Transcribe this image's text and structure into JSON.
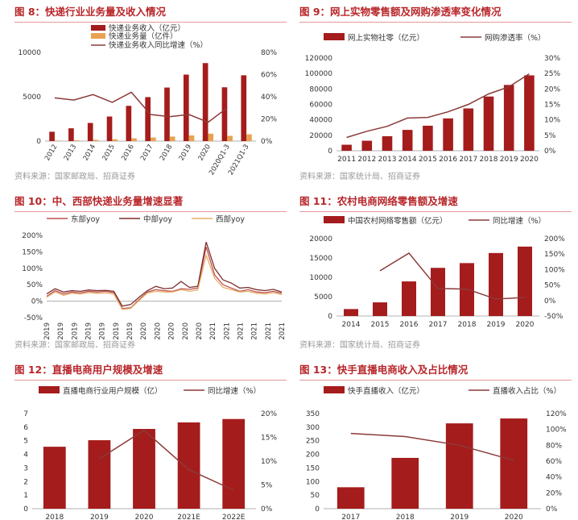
{
  "colors": {
    "bar": "#a51c1c",
    "line": "#8c3a3a",
    "orange": "#e8a251",
    "east": "#c0504d",
    "central": "#7b2f2f",
    "west": "#e6b06a"
  },
  "chart_data": [
    {
      "id": "c8",
      "type": "bar",
      "title": "图 8：快递行业业务量及收入情况",
      "source": "资料来源：国家邮政局、招商证券",
      "categories": [
        "2012",
        "2013",
        "2014",
        "2015",
        "2016",
        "2017",
        "2018",
        "2019",
        "2020",
        "2020Q1-3",
        "2021Q1-3"
      ],
      "series": [
        {
          "name": "快递业务收入（亿元）",
          "type": "bar",
          "axis": "left",
          "values": [
            1055,
            1442,
            2045,
            2770,
            3974,
            4957,
            6038,
            7498,
            8795,
            6067,
            7418
          ]
        },
        {
          "name": "快递业务量（亿件）",
          "type": "bar",
          "axis": "left",
          "values": [
            57,
            92,
            140,
            207,
            313,
            401,
            507,
            635,
            833,
            595,
            770
          ]
        },
        {
          "name": "快递业务收入同比增速（%）",
          "type": "line",
          "axis": "right",
          "values": [
            39,
            37,
            42,
            35,
            44,
            24,
            22,
            24,
            17,
            30,
            null
          ]
        }
      ],
      "yleft": [
        0,
        10000
      ],
      "yleft_ticks": [
        "0",
        "5000",
        "10000"
      ],
      "yright": [
        0,
        80
      ],
      "yright_ticks": [
        "0%",
        "20%",
        "40%",
        "60%",
        "80%"
      ],
      "legend": "top"
    },
    {
      "id": "c9",
      "type": "bar",
      "title": "图 9：网上实物零售额及网购渗透率变化情况",
      "source": "资料来源：国家统计局、招商证券",
      "categories": [
        "2011",
        "2012",
        "2013",
        "2014",
        "2015",
        "2016",
        "2017",
        "2018",
        "2019",
        "2020"
      ],
      "series": [
        {
          "name": "网上实物社零（亿元）",
          "type": "bar",
          "axis": "left",
          "values": [
            7800,
            13000,
            18800,
            27000,
            32400,
            41900,
            54800,
            70200,
            85200,
            97600
          ]
        },
        {
          "name": "网购渗透率（%）",
          "type": "line",
          "axis": "right",
          "values": [
            4.3,
            6.3,
            7.9,
            10.6,
            10.8,
            12.6,
            15.0,
            18.4,
            20.7,
            24.9
          ]
        }
      ],
      "yleft": [
        0,
        120000
      ],
      "yleft_ticks": [
        "0",
        "20000",
        "40000",
        "60000",
        "80000",
        "100000",
        "120000"
      ],
      "yright": [
        0,
        30
      ],
      "yright_ticks": [
        "0%",
        "5%",
        "10%",
        "15%",
        "20%",
        "25%",
        "30%"
      ],
      "legend": "top"
    },
    {
      "id": "c10",
      "type": "line",
      "title": "图 10：中、西部快递业务量增速显著",
      "source": "资料来源：国家邮政局、招商证券",
      "categories": [
        "2019",
        "2019",
        "2019",
        "2019",
        "2019",
        "2019",
        "2019",
        "2019",
        "2019",
        "2020",
        "2020",
        "2020",
        "2020",
        "2020",
        "2020",
        "2020",
        "2020",
        "2020",
        "2020",
        "2021",
        "2021",
        "2021",
        "2021",
        "2021",
        "2021",
        "2021",
        "2021",
        "2021",
        "2021"
      ],
      "series": [
        {
          "name": "东部yoy",
          "values": [
            15,
            32,
            22,
            28,
            25,
            30,
            28,
            30,
            26,
            -22,
            -20,
            5,
            28,
            35,
            32,
            30,
            38,
            36,
            40,
            165,
            80,
            50,
            40,
            30,
            35,
            28,
            26,
            30,
            24
          ]
        },
        {
          "name": "中部yoy",
          "values": [
            22,
            38,
            28,
            32,
            30,
            34,
            32,
            33,
            30,
            -15,
            -10,
            12,
            32,
            45,
            38,
            40,
            60,
            42,
            45,
            180,
            100,
            65,
            55,
            40,
            42,
            35,
            32,
            36,
            28
          ]
        },
        {
          "name": "西部yoy",
          "values": [
            12,
            28,
            18,
            24,
            22,
            26,
            24,
            25,
            22,
            -25,
            -22,
            2,
            25,
            30,
            28,
            28,
            35,
            30,
            34,
            140,
            70,
            42,
            35,
            28,
            30,
            24,
            22,
            26,
            20
          ]
        }
      ],
      "yleft": [
        -50,
        200
      ],
      "yleft_ticks": [
        "-50%",
        "0%",
        "50%",
        "100%",
        "150%",
        "200%"
      ],
      "xtick_labels": [
        "2019",
        "2019",
        "2019",
        "2019",
        "2019",
        "2019",
        "2019",
        "2020",
        "2020",
        "2020",
        "2020",
        "2020",
        "2021",
        "2021",
        "2021",
        "2021",
        "2021",
        "2021"
      ],
      "legend": "top"
    },
    {
      "id": "c11",
      "type": "bar",
      "title": "图 11：农村电商网络零售额及增速",
      "source": "资料来源：国家统计局、招商证券",
      "categories": [
        "2014",
        "2015",
        "2016",
        "2017",
        "2018",
        "2019",
        "2020"
      ],
      "series": [
        {
          "name": "中国农村网络零售额（亿元）",
          "type": "bar",
          "axis": "left",
          "values": [
            1800,
            3530,
            8945,
            12449,
            13679,
            16286,
            17945
          ]
        },
        {
          "name": "同比增速（%）",
          "type": "line",
          "axis": "right",
          "values": [
            null,
            96,
            153,
            39,
            37,
            5,
            10
          ]
        }
      ],
      "yleft": [
        0,
        20000
      ],
      "yleft_ticks": [
        "0",
        "5000",
        "10000",
        "15000",
        "20000"
      ],
      "yright": [
        -50,
        200
      ],
      "yright_ticks": [
        "-50%",
        "0%",
        "50%",
        "100%",
        "150%",
        "200%"
      ],
      "legend": "top"
    },
    {
      "id": "c12",
      "type": "bar",
      "title": "图 12：直播电商用户规模及增速",
      "source": "",
      "categories": [
        "2018",
        "2019",
        "2020",
        "2021E",
        "2022E"
      ],
      "series": [
        {
          "name": "直播电商行业用户规模（亿）",
          "type": "bar",
          "axis": "left",
          "values": [
            4.56,
            5.04,
            5.87,
            6.35,
            6.6
          ]
        },
        {
          "name": "同比增速（%）",
          "type": "line",
          "axis": "right",
          "values": [
            null,
            10.5,
            16.5,
            8.2,
            3.9
          ]
        }
      ],
      "yleft": [
        0,
        7
      ],
      "yleft_ticks": [
        "0",
        "1",
        "2",
        "3",
        "4",
        "5",
        "6",
        "7"
      ],
      "yright": [
        0,
        20
      ],
      "yright_ticks": [
        "0%",
        "5%",
        "10%",
        "15%",
        "20%"
      ],
      "legend": "top"
    },
    {
      "id": "c13",
      "type": "bar",
      "title": "图 13：快手直播电商收入及占比情况",
      "source": "",
      "categories": [
        "2017",
        "2018",
        "2019",
        "2020"
      ],
      "series": [
        {
          "name": "快手直播收入（亿元）",
          "type": "bar",
          "axis": "left",
          "values": [
            79,
            187,
            314,
            332
          ]
        },
        {
          "name": "直播收入占比（%）",
          "type": "line",
          "axis": "right",
          "values": [
            95,
            91,
            80,
            61
          ]
        }
      ],
      "yleft": [
        0,
        350
      ],
      "yleft_ticks": [
        "0",
        "50",
        "100",
        "150",
        "200",
        "250",
        "300",
        "350"
      ],
      "yright": [
        0,
        120
      ],
      "yright_ticks": [
        "0%",
        "20%",
        "40%",
        "60%",
        "80%",
        "100%",
        "120%"
      ],
      "legend": "top"
    }
  ]
}
